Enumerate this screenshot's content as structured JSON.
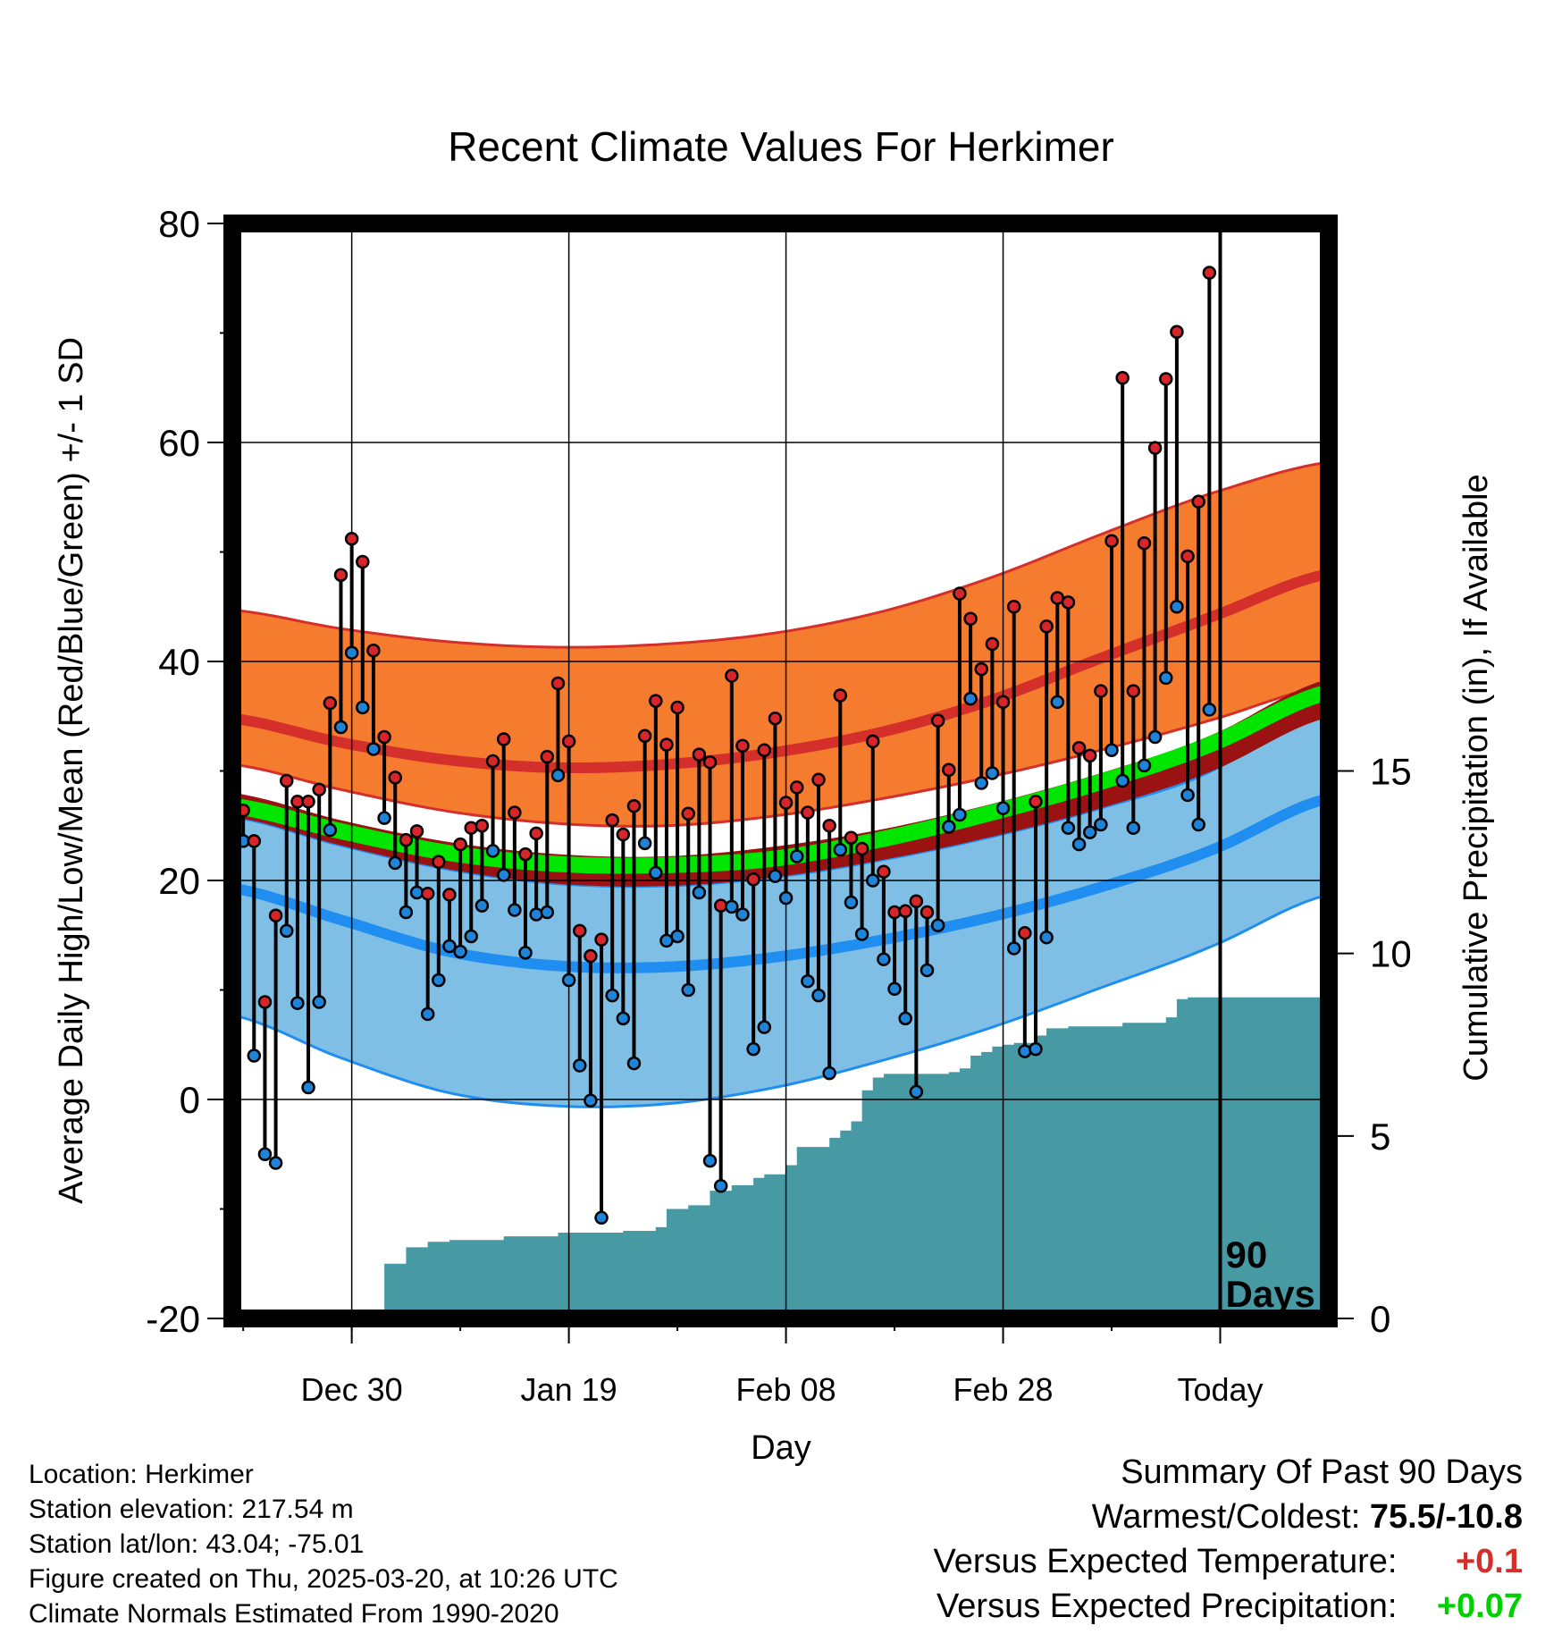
{
  "title": "Recent Climate Values For Herkimer",
  "colors": {
    "record_band": "#f57b2f",
    "normal_high": "#d42f2b",
    "normal_low": "#1f8ef0",
    "low_band": "#7fbfe6",
    "mean_band": "#9b1212",
    "mean_line": "#00e600",
    "precip": "#4799a4",
    "high_dot": "#d8252a",
    "low_dot": "#1f84d8",
    "anom_temp": "#d42f2b",
    "anom_precip": "#00d000"
  },
  "chart_data": {
    "type": "line",
    "title": "Recent Climate Values For Herkimer",
    "xlabel": "Day",
    "ylabel": "Average Daily High/Low/Mean (Red/Blue/Green) +/- 1 SD",
    "y2label": "Cumulative Precipitation (in), If Available",
    "ylim": [
      -20,
      80
    ],
    "y2lim": [
      0,
      30
    ],
    "xlim": [
      0,
      101
    ],
    "x_ticks": [
      {
        "day": 11,
        "label": "Dec 30"
      },
      {
        "day": 31,
        "label": "Jan 19"
      },
      {
        "day": 51,
        "label": "Feb 08"
      },
      {
        "day": 71,
        "label": "Feb 28"
      },
      {
        "day": 91,
        "label": "Today"
      }
    ],
    "y_ticks": [
      -20,
      0,
      20,
      40,
      60,
      80
    ],
    "y2_ticks": [
      0,
      5,
      10,
      15
    ],
    "today_day": 91,
    "today_label": [
      "90",
      "Days"
    ],
    "normals_days": [
      0,
      10,
      20,
      30,
      40,
      50,
      60,
      70,
      80,
      90,
      101
    ],
    "normal_high_plus_sd": [
      44.7,
      43.0,
      41.8,
      41.3,
      41.6,
      42.6,
      44.6,
      47.7,
      51.6,
      55.3,
      58.2
    ],
    "normal_high": [
      34.8,
      32.6,
      31.0,
      30.3,
      30.6,
      31.7,
      33.6,
      36.5,
      40.3,
      44.0,
      48.0
    ],
    "normal_high_minus_sd": [
      30.6,
      28.3,
      26.3,
      25.2,
      25.0,
      25.9,
      27.5,
      29.5,
      31.9,
      34.6,
      37.8
    ],
    "normal_mean_plus_sd": [
      28.0,
      25.5,
      23.5,
      22.4,
      22.2,
      23.1,
      24.7,
      27.0,
      29.8,
      33.2,
      38.4
    ],
    "normal_mean": [
      26.8,
      24.5,
      22.5,
      21.5,
      21.4,
      22.0,
      23.8,
      26.2,
      29.0,
      32.4,
      37.2
    ],
    "normal_mean_minus_sd": [
      25.8,
      23.2,
      21.0,
      19.7,
      19.5,
      20.3,
      21.9,
      24.0,
      26.6,
      29.9,
      34.9
    ],
    "normal_low_plus_sd": [
      25.8,
      23.2,
      21.0,
      19.7,
      19.5,
      20.3,
      21.9,
      24.0,
      26.6,
      29.9,
      36.2
    ],
    "normal_low": [
      19.3,
      16.4,
      13.5,
      12.2,
      12.1,
      13.0,
      14.6,
      16.7,
      19.4,
      22.7,
      27.5
    ],
    "normal_low_minus_sd": [
      7.7,
      3.8,
      0.6,
      -0.6,
      -0.4,
      1.1,
      3.6,
      6.6,
      10.2,
      13.9,
      18.7
    ],
    "daily_high": [
      26.4,
      23.6,
      8.9,
      16.8,
      29.1,
      27.2,
      27.2,
      28.3,
      36.2,
      47.9,
      51.2,
      49.1,
      41.0,
      33.1,
      29.4,
      23.7,
      24.5,
      18.8,
      21.7,
      18.7,
      23.3,
      24.8,
      25.0,
      30.9,
      32.9,
      26.2,
      22.4,
      24.3,
      31.3,
      38.0,
      32.7,
      15.4,
      13.1,
      14.6,
      25.5,
      24.2,
      26.8,
      33.2,
      36.4,
      32.4,
      35.8,
      26.1,
      31.5,
      30.8,
      17.7,
      38.7,
      32.3,
      20.1,
      31.9,
      34.8,
      27.1,
      28.5,
      26.2,
      29.2,
      25.0,
      36.9,
      23.9,
      22.9,
      32.7,
      20.8,
      17.1,
      17.2,
      18.1,
      17.1,
      34.6,
      30.1,
      46.2,
      43.9,
      39.3,
      41.6,
      36.3,
      45.0,
      15.2,
      27.2,
      43.2,
      45.8,
      45.4,
      32.1,
      31.4,
      37.3,
      51.0,
      65.9,
      37.3,
      50.8,
      59.5,
      65.8,
      70.1,
      49.6,
      54.6,
      75.5
    ],
    "daily_low": [
      23.6,
      4.0,
      -5.0,
      -5.8,
      15.4,
      8.8,
      1.1,
      8.9,
      24.6,
      34.0,
      40.8,
      35.8,
      32.0,
      25.7,
      21.6,
      17.1,
      18.9,
      7.8,
      10.9,
      14.0,
      13.5,
      14.9,
      17.7,
      22.7,
      20.5,
      17.3,
      13.4,
      16.9,
      17.1,
      29.6,
      10.9,
      3.1,
      -0.1,
      -10.8,
      9.5,
      7.4,
      3.3,
      23.4,
      20.7,
      14.5,
      14.9,
      10.0,
      18.9,
      -5.6,
      -7.9,
      17.6,
      16.9,
      4.6,
      6.6,
      20.4,
      18.4,
      22.2,
      10.8,
      9.5,
      2.4,
      22.8,
      18.0,
      15.1,
      20.0,
      12.8,
      10.1,
      7.4,
      0.7,
      11.8,
      15.9,
      24.9,
      26.0,
      36.6,
      28.9,
      29.8,
      26.6,
      13.8,
      4.4,
      4.6,
      14.8,
      36.3,
      24.8,
      23.3,
      24.4,
      25.1,
      31.9,
      29.1,
      24.8,
      30.5,
      33.1,
      38.5,
      45.0,
      27.8,
      25.1,
      35.6
    ],
    "precip_days": [
      0,
      8,
      10,
      11,
      12,
      14,
      16,
      18,
      20,
      25,
      30,
      36,
      39,
      40,
      42,
      44,
      46,
      48,
      49,
      50,
      51,
      52,
      54,
      55,
      56,
      57,
      58,
      59,
      60,
      66,
      67,
      68,
      69,
      70,
      71,
      72,
      73,
      74,
      75,
      76,
      77,
      78,
      79,
      80,
      82,
      86,
      87,
      88,
      101
    ],
    "precip_cumulative": [
      0.0,
      0.05,
      0.15,
      0.18,
      0.2,
      1.5,
      1.95,
      2.1,
      2.15,
      2.25,
      2.35,
      2.4,
      2.5,
      3.0,
      3.1,
      3.5,
      3.65,
      3.85,
      3.95,
      3.95,
      4.2,
      4.7,
      4.7,
      4.95,
      5.15,
      5.4,
      6.25,
      6.6,
      6.7,
      6.75,
      6.85,
      7.2,
      7.3,
      7.45,
      7.5,
      7.55,
      7.55,
      7.75,
      7.95,
      7.95,
      8.0,
      8.0,
      8.0,
      8.0,
      8.1,
      8.25,
      8.75,
      8.8,
      8.8
    ]
  },
  "footer": {
    "location": "Location: Herkimer",
    "elevation": "Station elevation: 217.54 m",
    "latlon": "Station lat/lon: 43.04; -75.01",
    "created": "Figure created on Thu, 2025-03-20, at 10:26 UTC",
    "normals": "Climate Normals Estimated From 1990-2020"
  },
  "summary": {
    "heading": "Summary Of Past 90 Days",
    "warmest_coldest_label": "Warmest/Coldest:",
    "warmest_coldest_value": "75.5/-10.8",
    "temp_label": "Versus Expected Temperature:",
    "temp_value": "+0.1",
    "precip_label": "Versus Expected Precipitation:",
    "precip_value": "+0.07"
  }
}
